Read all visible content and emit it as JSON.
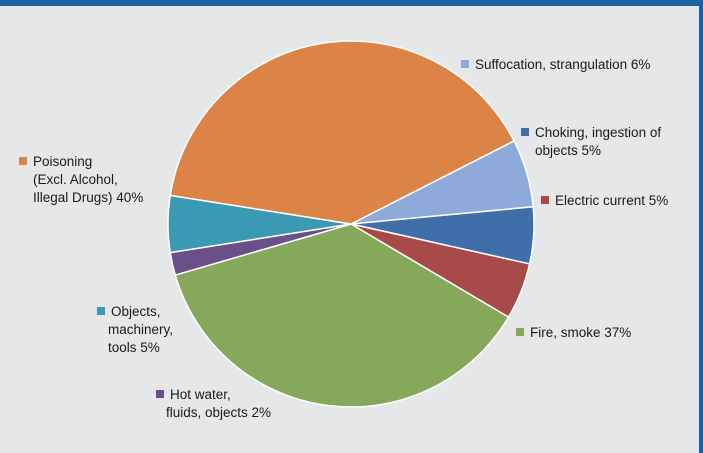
{
  "chart_data": {
    "type": "pie",
    "title": "",
    "start_angle_deg": 63,
    "slices": [
      {
        "name": "Suffocation, strangulation",
        "value": 6,
        "color": "#8eaadb",
        "lines": [
          "Suffocation, strangulation 6%"
        ]
      },
      {
        "name": "Choking, ingestion of objects",
        "value": 5,
        "color": "#3f6ea9",
        "lines": [
          "Choking, ingestion of",
          "objects 5%"
        ]
      },
      {
        "name": "Electric current",
        "value": 5,
        "color": "#a84a4a",
        "lines": [
          "Electric current 5%"
        ]
      },
      {
        "name": "Fire, smoke",
        "value": 37,
        "color": "#86a85a",
        "lines": [
          "Fire, smoke 37%"
        ]
      },
      {
        "name": "Hot water, fluids, objects",
        "value": 2,
        "color": "#6a4f8a",
        "lines": [
          "Hot water,",
          "fluids, objects 2%"
        ]
      },
      {
        "name": "Objects, machinery, tools",
        "value": 5,
        "color": "#3a9ab4",
        "lines": [
          "Objects,",
          "machinery,",
          "tools 5%"
        ]
      },
      {
        "name": "Poisoning (Excl. Alcohol, Illegal Drugs)",
        "value": 40,
        "color": "#dc8446",
        "lines": [
          "Poisoning",
          "(Excl. Alcohol,",
          "Illegal Drugs) 40%"
        ]
      }
    ]
  }
}
